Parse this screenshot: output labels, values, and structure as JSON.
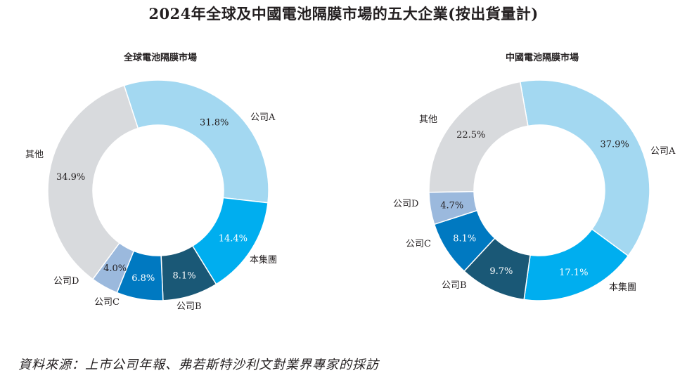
{
  "page": {
    "title": "2024年全球及中國電池隔膜市場的五大企業(按出貨量計)",
    "source": "資料來源：上市公司年報、弗若斯特沙利文對業界專家的採訪"
  },
  "chart_data": [
    {
      "type": "pie",
      "variant": "donut",
      "title": "全球電池隔膜市場",
      "unit": "%",
      "categories": [
        "公司A",
        "本集團",
        "公司B",
        "公司C",
        "公司D",
        "其他"
      ],
      "values": [
        31.8,
        14.4,
        8.1,
        6.8,
        4.0,
        34.9
      ],
      "labels": [
        "31.8%",
        "14.4%",
        "8.1%",
        "6.8%",
        "4.0%",
        "34.9%"
      ],
      "colors": [
        "#a3d8f1",
        "#00aeef",
        "#1a5876",
        "#0079c1",
        "#9bb9dd",
        "#d8dadd"
      ],
      "label_colors": [
        "#231f20",
        "#ffffff",
        "#ffffff",
        "#ffffff",
        "#231f20",
        "#231f20"
      ]
    },
    {
      "type": "pie",
      "variant": "donut",
      "title": "中國電池隔膜市場",
      "unit": "%",
      "categories": [
        "公司A",
        "本集團",
        "公司B",
        "公司C",
        "公司D",
        "其他"
      ],
      "values": [
        37.9,
        17.1,
        9.7,
        8.1,
        4.7,
        22.5
      ],
      "labels": [
        "37.9%",
        "17.1%",
        "9.7%",
        "8.1%",
        "4.7%",
        "22.5%"
      ],
      "colors": [
        "#a3d8f1",
        "#00aeef",
        "#1a5876",
        "#0079c1",
        "#9bb9dd",
        "#d8dadd"
      ],
      "label_colors": [
        "#231f20",
        "#ffffff",
        "#ffffff",
        "#ffffff",
        "#231f20",
        "#231f20"
      ]
    }
  ]
}
